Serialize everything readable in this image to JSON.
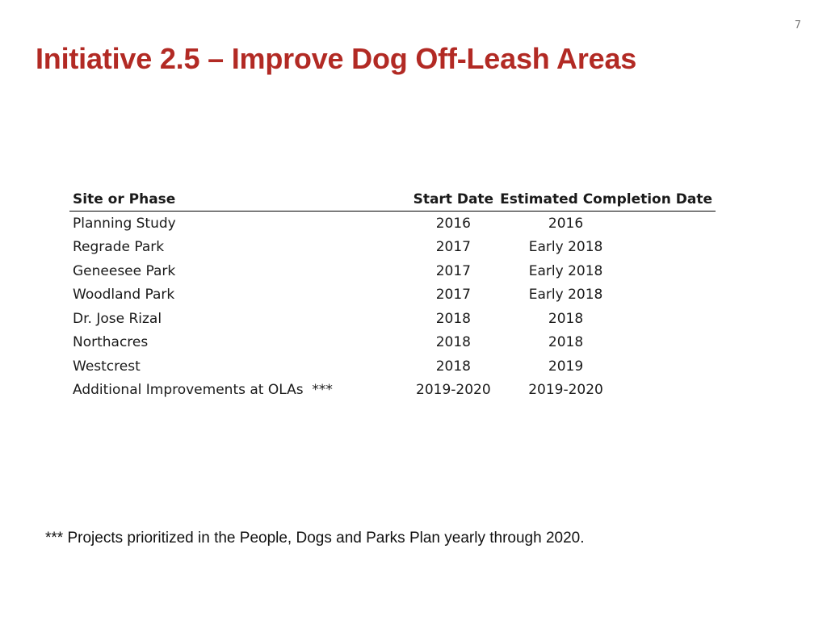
{
  "slide": {
    "page_number": "7",
    "title": "Initiative 2.5 – Improve Dog Off-Leash Areas",
    "footnote": "*** Projects prioritized in the People, Dogs and Parks Plan yearly through 2020."
  },
  "table": {
    "headers": {
      "site": "Site or Phase",
      "start": "Start Date",
      "completion": "Estimated Completion Date"
    },
    "rows": [
      {
        "site": "Planning Study",
        "start": "2016",
        "completion": "2016"
      },
      {
        "site": "Regrade Park",
        "start": "2017",
        "completion": "Early 2018"
      },
      {
        "site": "Geneesee Park",
        "start": "2017",
        "completion": "Early 2018"
      },
      {
        "site": "Woodland Park",
        "start": "2017",
        "completion": "Early 2018"
      },
      {
        "site": "Dr. Jose Rizal",
        "start": "2018",
        "completion": "2018"
      },
      {
        "site": "Northacres",
        "start": "2018",
        "completion": "2018"
      },
      {
        "site": "Westcrest",
        "start": "2018",
        "completion": "2019"
      },
      {
        "site": "Additional Improvements at OLAs  ***",
        "start": "2019-2020",
        "completion": "2019-2020"
      }
    ]
  },
  "colors": {
    "title": "#b22a24",
    "text": "#1a1a1a",
    "page_number": "#7f7f7f"
  }
}
